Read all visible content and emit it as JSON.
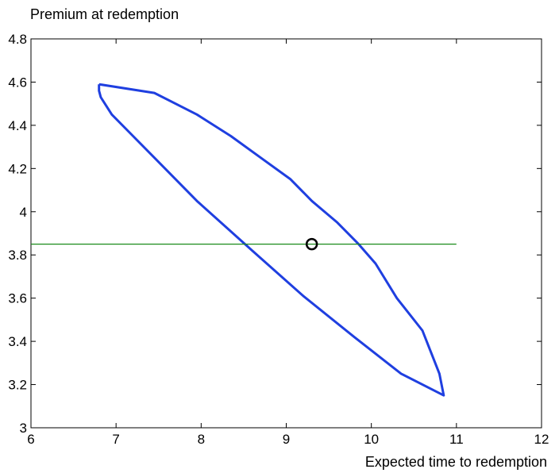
{
  "chart_data": {
    "type": "line",
    "title": "",
    "xlabel": "Expected time to redemption",
    "ylabel": "Premium at redemption",
    "xlim": [
      6,
      12
    ],
    "ylim": [
      3,
      4.8
    ],
    "xticks": [
      6,
      7,
      8,
      9,
      10,
      11,
      12
    ],
    "yticks": [
      3,
      3.2,
      3.4,
      3.6,
      3.8,
      4,
      4.2,
      4.4,
      4.6,
      4.8
    ],
    "xtick_labels": [
      "6",
      "7",
      "8",
      "9",
      "10",
      "11",
      "12"
    ],
    "ytick_labels": [
      "3",
      "3.2",
      "3.4",
      "3.6",
      "3.8",
      "4",
      "4.2",
      "4.4",
      "4.6",
      "4.8"
    ],
    "grid": false,
    "series": [
      {
        "style": "closed-contour",
        "color": "#1f3fe0",
        "x": [
          6.8,
          7.45,
          7.95,
          8.35,
          8.7,
          9.05,
          9.3,
          9.6,
          9.85,
          10.05,
          10.3,
          10.6,
          10.7,
          10.8,
          10.85,
          10.35,
          9.8,
          9.2,
          8.6,
          7.95,
          7.45,
          7.2,
          6.95,
          6.82,
          6.8,
          6.8
        ],
        "y": [
          4.59,
          4.55,
          4.45,
          4.35,
          4.25,
          4.15,
          4.05,
          3.95,
          3.85,
          3.76,
          3.6,
          3.45,
          3.35,
          3.25,
          3.15,
          3.25,
          3.42,
          3.61,
          3.82,
          4.05,
          4.25,
          4.35,
          4.45,
          4.53,
          4.56,
          4.59
        ]
      },
      {
        "style": "horizontal-line",
        "color": "#1a8a1a",
        "x": [
          6,
          11
        ],
        "y": [
          3.85,
          3.85
        ]
      },
      {
        "style": "circle-marker",
        "color": "#000000",
        "x": [
          9.3
        ],
        "y": [
          3.85
        ]
      }
    ]
  }
}
